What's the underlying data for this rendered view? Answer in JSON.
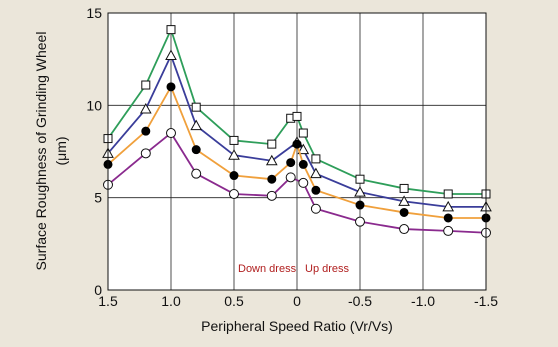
{
  "chart_data": {
    "type": "line",
    "xlabel": "Peripheral Speed Ratio (Vr/Vs)",
    "ylabel": "Surface Roughness of Grinding Wheel",
    "ylabel_unit": "(μm)",
    "x_ticks": [
      "1.5",
      "1.0",
      "0.5",
      "0",
      "-0.5",
      "-1.0",
      "-1.5"
    ],
    "y_ticks": [
      "0",
      "5",
      "10",
      "15"
    ],
    "xlim": [
      1.5,
      -1.5
    ],
    "ylim": [
      0,
      15
    ],
    "grid": true,
    "annotations": [
      "Down dress",
      "Up dress"
    ],
    "series": [
      {
        "color": "#2e9e5a",
        "marker": "square",
        "x": [
          1.5,
          1.2,
          1.0,
          0.8,
          0.5,
          0.2,
          0.05,
          0.0,
          -0.05,
          -0.15,
          -0.5,
          -0.85,
          -1.2,
          -1.5
        ],
        "values": [
          8.2,
          11.1,
          14.1,
          9.9,
          8.1,
          7.9,
          9.3,
          9.4,
          8.5,
          7.1,
          6.0,
          5.5,
          5.2,
          5.2
        ]
      },
      {
        "color": "#3a3d9a",
        "marker": "triangle",
        "x": [
          1.5,
          1.2,
          1.0,
          0.8,
          0.5,
          0.2,
          0.0,
          -0.05,
          -0.15,
          -0.5,
          -0.85,
          -1.2,
          -1.5
        ],
        "values": [
          7.4,
          9.8,
          12.7,
          8.9,
          7.3,
          7.0,
          8.0,
          7.6,
          6.3,
          5.3,
          4.8,
          4.5,
          4.5
        ]
      },
      {
        "color": "#f0a03c",
        "marker": "filled-circle",
        "x": [
          1.5,
          1.2,
          1.0,
          0.8,
          0.5,
          0.2,
          0.05,
          0.0,
          -0.05,
          -0.15,
          -0.5,
          -0.85,
          -1.2,
          -1.5
        ],
        "values": [
          6.8,
          8.6,
          11.0,
          7.6,
          6.2,
          6.0,
          6.9,
          7.9,
          6.8,
          5.4,
          4.6,
          4.2,
          3.9,
          3.9
        ]
      },
      {
        "color": "#8a2a8e",
        "marker": "open-circle",
        "x": [
          1.5,
          1.2,
          1.0,
          0.8,
          0.5,
          0.2,
          0.05,
          -0.05,
          -0.15,
          -0.5,
          -0.85,
          -1.2,
          -1.5
        ],
        "values": [
          5.7,
          7.4,
          8.5,
          6.3,
          5.2,
          5.1,
          6.1,
          5.8,
          4.4,
          3.7,
          3.3,
          3.2,
          3.1
        ]
      }
    ]
  }
}
